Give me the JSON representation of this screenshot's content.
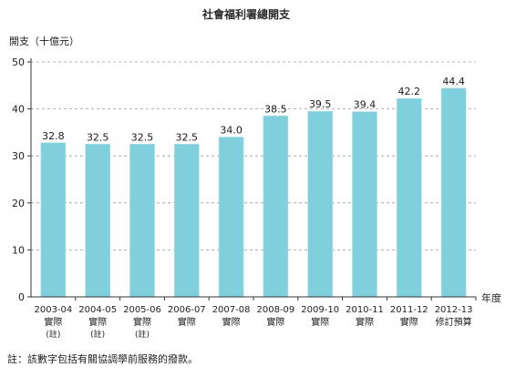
{
  "chart_data": {
    "type": "bar",
    "title": "社會福利署總開支",
    "ylabel": "開支（十億元）",
    "xlabel": "年度",
    "categories": [
      "2003-04",
      "2004-05",
      "2005-06",
      "2006-07",
      "2007-08",
      "2008-09",
      "2009-10",
      "2010-11",
      "2011-12",
      "2012-13"
    ],
    "category_notes": [
      [
        "實際",
        "(註)"
      ],
      [
        "實際",
        "(註)"
      ],
      [
        "實際",
        "(註)"
      ],
      [
        "實際"
      ],
      [
        "實際"
      ],
      [
        "實際"
      ],
      [
        "實際"
      ],
      [
        "實際"
      ],
      [
        "實際"
      ],
      [
        "修訂預算"
      ]
    ],
    "values": [
      32.8,
      32.5,
      32.5,
      32.5,
      34.0,
      38.5,
      39.5,
      39.4,
      42.2,
      44.4
    ],
    "ylim": [
      0,
      50
    ],
    "yticks": [
      0,
      10,
      20,
      30,
      40,
      50
    ],
    "grid": true,
    "bar_color": "#7fcfdc"
  },
  "footnote": "註：該數字包括有關協調學前服務的撥款。"
}
